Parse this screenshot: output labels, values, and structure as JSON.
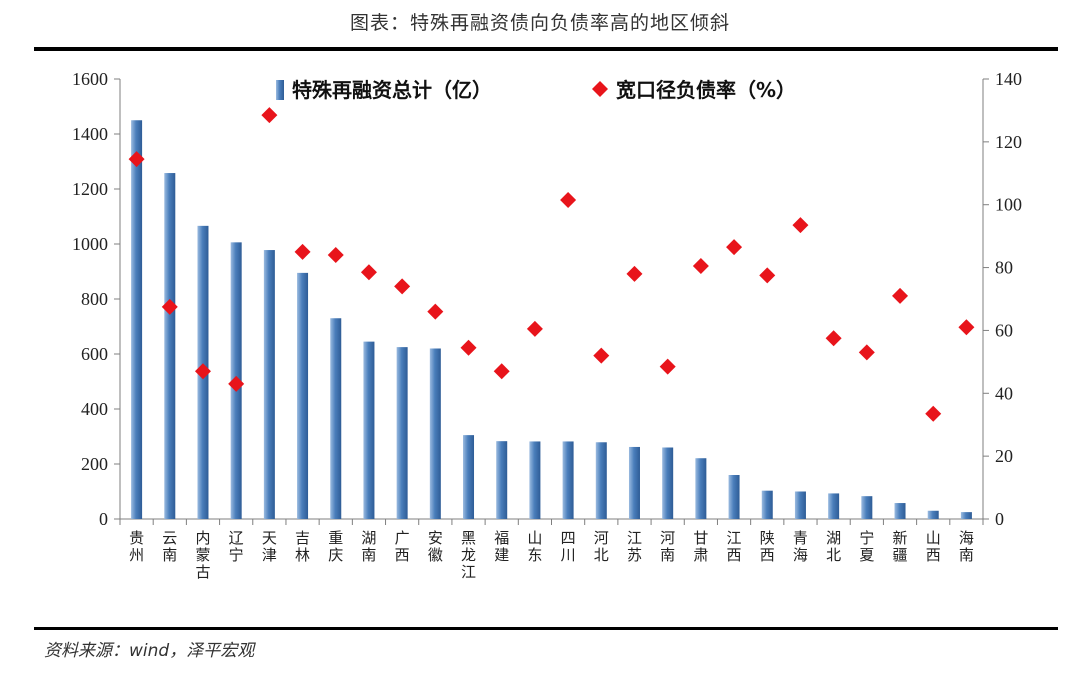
{
  "header": {
    "title": "图表：特殊再融资债向负债率高的地区倾斜"
  },
  "footer": {
    "source": "资料来源：wind，泽平宏观"
  },
  "colors": {
    "bar": "#4A7EBB",
    "bar_light": "#9BBBE0",
    "marker": "#E8141B",
    "axis": "#7f7f7f"
  },
  "chart_data": {
    "type": "bar",
    "categories": [
      "贵州",
      "云南",
      "内蒙古",
      "辽宁",
      "天津",
      "吉林",
      "重庆",
      "湖南",
      "广西",
      "安徽",
      "黑龙江",
      "福建",
      "山东",
      "四川",
      "河北",
      "江苏",
      "河南",
      "甘肃",
      "江西",
      "陕西",
      "青海",
      "湖北",
      "宁夏",
      "新疆",
      "山西",
      "海南"
    ],
    "series": [
      {
        "name": "特殊再融资总计（亿）",
        "type": "bar",
        "axis": "left",
        "values": [
          1450,
          1258,
          1066,
          1006,
          978,
          895,
          730,
          645,
          625,
          620,
          305,
          283,
          282,
          282,
          279,
          262,
          260,
          221,
          160,
          103,
          100,
          93,
          83,
          58,
          30,
          25
        ]
      },
      {
        "name": "宽口径负债率（%）",
        "type": "scatter",
        "marker": "diamond",
        "axis": "right",
        "values": [
          114.5,
          67.5,
          47,
          43,
          128.5,
          85,
          84,
          78.5,
          74,
          66,
          54.5,
          47,
          60.5,
          101.5,
          52,
          78,
          48.5,
          80.5,
          86.5,
          77.5,
          93.5,
          57.5,
          53,
          71,
          33.5,
          61
        ]
      }
    ],
    "y_left": {
      "ylim": [
        0,
        1600
      ],
      "ticks": [
        "0",
        "200",
        "400",
        "600",
        "800",
        "1000",
        "1200",
        "1400",
        "1600"
      ]
    },
    "y_right": {
      "ylim": [
        0,
        140
      ],
      "ticks": [
        "0",
        "20",
        "40",
        "60",
        "80",
        "100",
        "120",
        "140"
      ]
    },
    "legend": {
      "placement": "top-center"
    },
    "grid": false
  }
}
